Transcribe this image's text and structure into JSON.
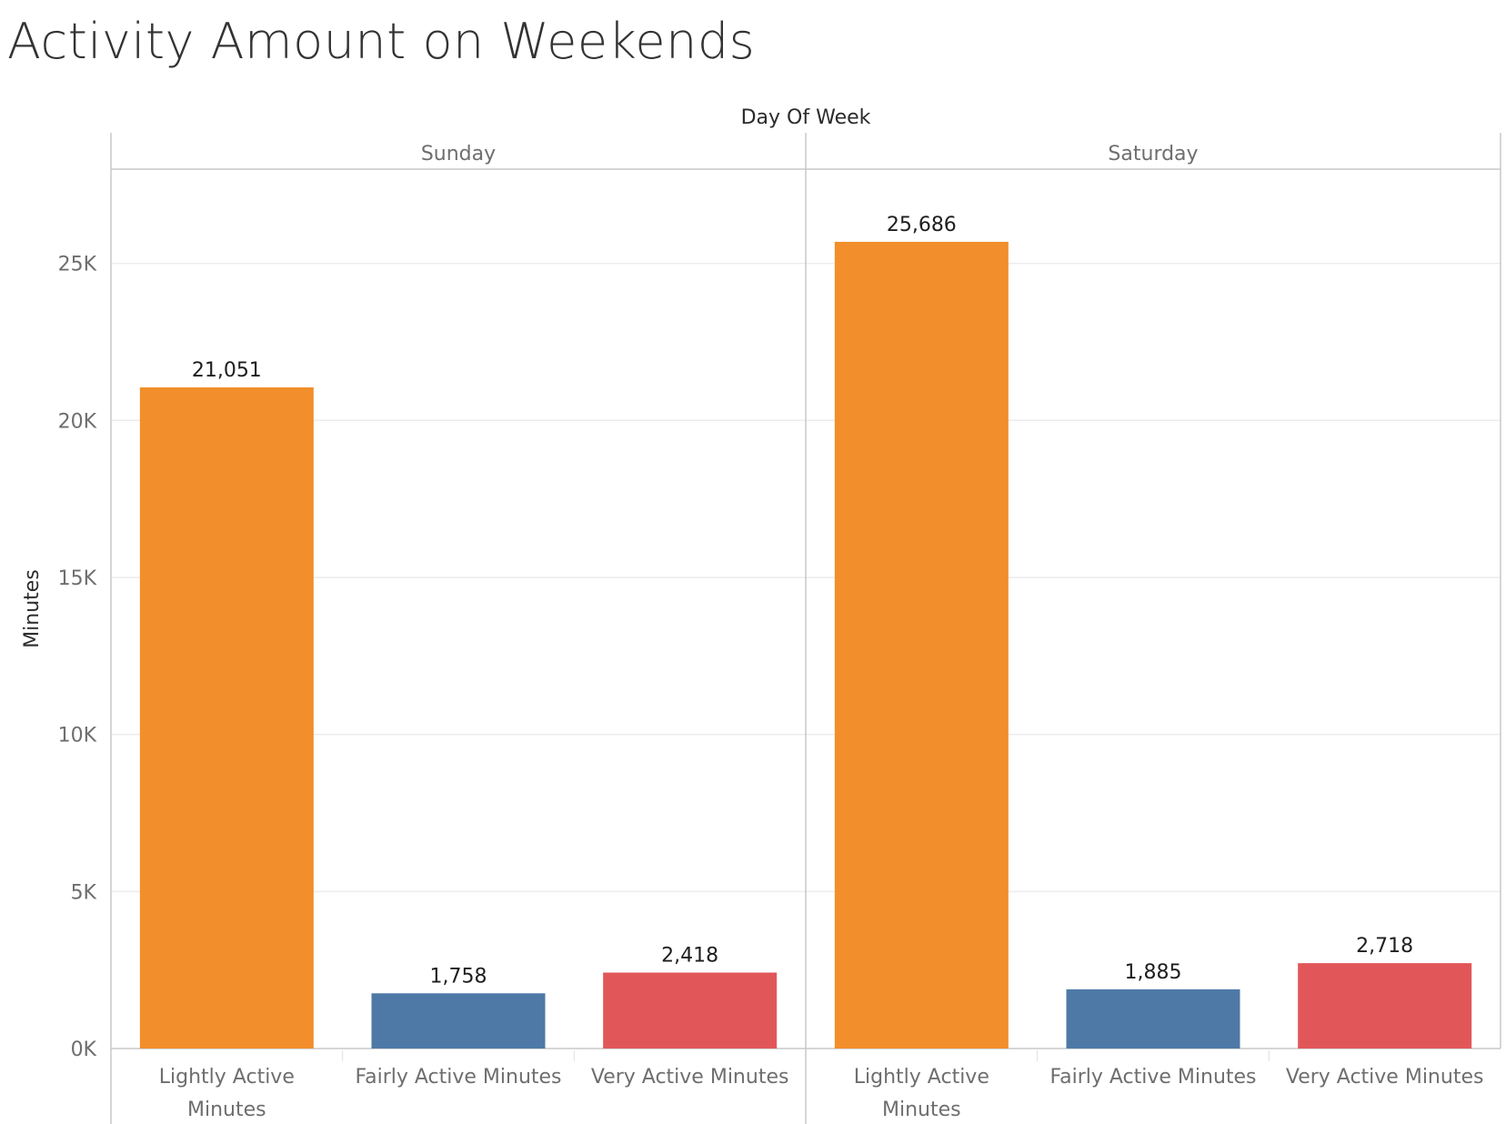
{
  "title": "Activity Amount on Weekends",
  "colors": {
    "Lightly Active Minutes": "#f28e2b",
    "Fairly Active Minutes": "#4e79a7",
    "Very Active Minutes": "#e15759"
  },
  "chart_data": {
    "type": "bar",
    "title": "Activity Amount on Weekends",
    "facet_label": "Day Of Week",
    "ylabel": "Minutes",
    "ylim": [
      0,
      28000
    ],
    "yticks": [
      0,
      5000,
      10000,
      15000,
      20000,
      25000
    ],
    "ytick_labels": [
      "0K",
      "5K",
      "10K",
      "15K",
      "20K",
      "25K"
    ],
    "grid": true,
    "categories": [
      "Lightly Active Minutes",
      "Fairly Active Minutes",
      "Very Active Minutes"
    ],
    "category_lines": [
      [
        "Lightly Active",
        "Minutes"
      ],
      [
        "Fairly Active Minutes"
      ],
      [
        "Very Active Minutes"
      ]
    ],
    "facets": [
      {
        "name": "Sunday",
        "values": [
          21051,
          1758,
          2418
        ],
        "labels": [
          "21,051",
          "1,758",
          "2,418"
        ]
      },
      {
        "name": "Saturday",
        "values": [
          25686,
          1885,
          2718
        ],
        "labels": [
          "25,686",
          "1,885",
          "2,718"
        ]
      }
    ]
  }
}
